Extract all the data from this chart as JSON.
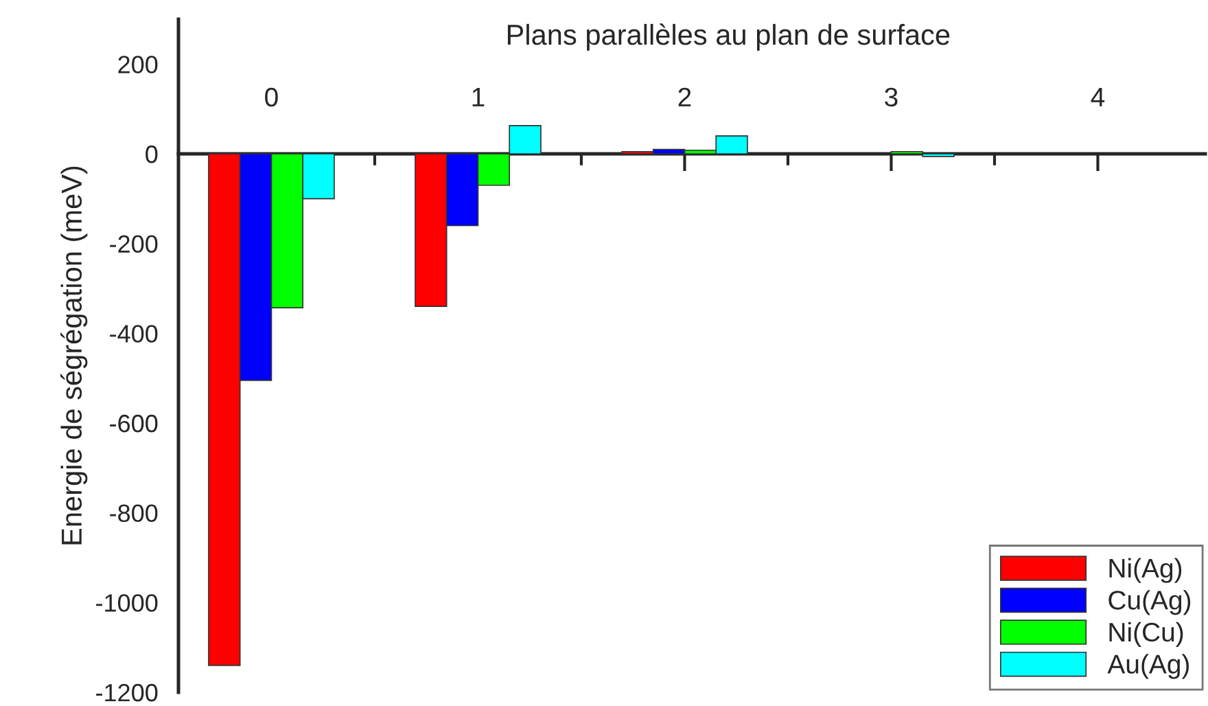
{
  "chart_data": {
    "type": "bar",
    "xlabel": "Plans parallèles au plan de surface",
    "ylabel": "Energie de ségrégation (meV)",
    "categories": [
      "0",
      "1",
      "2",
      "3",
      "4"
    ],
    "series": [
      {
        "name": "Ni(Ag)",
        "color": "#ff0000",
        "values": [
          -1140,
          -340,
          5,
          null,
          null
        ]
      },
      {
        "name": "Cu(Ag)",
        "color": "#0000ff",
        "values": [
          -505,
          -160,
          10,
          null,
          null
        ]
      },
      {
        "name": "Ni(Cu)",
        "color": "#00ff00",
        "values": [
          -343,
          -70,
          8,
          5,
          null
        ]
      },
      {
        "name": "Au(Ag)",
        "color": "#00ffff",
        "values": [
          -100,
          63,
          40,
          -6,
          null
        ]
      }
    ],
    "ylim": [
      -1200,
      300
    ],
    "yticks": [
      -1200,
      -1000,
      -800,
      -600,
      -400,
      -200,
      0,
      200
    ],
    "grid": false,
    "legend": "bottom right"
  }
}
